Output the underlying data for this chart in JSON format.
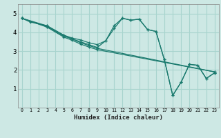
{
  "xlabel": "Humidex (Indice chaleur)",
  "background_color": "#cde8e4",
  "grid_color": "#a8d4ce",
  "line_color": "#1a7a6e",
  "xlim": [
    -0.5,
    23.5
  ],
  "ylim": [
    0,
    5.5
  ],
  "yticks": [
    1,
    2,
    3,
    4,
    5
  ],
  "xticks": [
    0,
    1,
    2,
    3,
    4,
    5,
    6,
    7,
    8,
    9,
    10,
    11,
    12,
    13,
    14,
    15,
    16,
    17,
    18,
    19,
    20,
    21,
    22,
    23
  ],
  "lines": [
    {
      "x": [
        0,
        1,
        3,
        5,
        6,
        7,
        8,
        9,
        10,
        11,
        12,
        13,
        14,
        15,
        16,
        17,
        18,
        19,
        20,
        21,
        22,
        23
      ],
      "y": [
        4.75,
        4.55,
        4.35,
        3.85,
        3.7,
        3.6,
        3.45,
        3.35,
        3.55,
        4.35,
        4.75,
        4.65,
        4.7,
        4.15,
        4.05,
        2.55,
        0.65,
        1.35,
        2.3,
        2.25,
        1.55,
        1.85
      ]
    },
    {
      "x": [
        0,
        3,
        5,
        6,
        7,
        8,
        9,
        10,
        11,
        12,
        13,
        14,
        15,
        16,
        17,
        18,
        19,
        20,
        21,
        22,
        23
      ],
      "y": [
        4.75,
        4.35,
        3.85,
        3.65,
        3.5,
        3.35,
        3.2,
        3.55,
        4.2,
        4.75,
        4.65,
        4.7,
        4.15,
        4.05,
        2.55,
        0.65,
        1.35,
        2.3,
        2.25,
        1.55,
        1.85
      ]
    },
    {
      "x": [
        0,
        3,
        5,
        6,
        7,
        8,
        9,
        23
      ],
      "y": [
        4.75,
        4.3,
        3.8,
        3.65,
        3.45,
        3.3,
        3.15,
        1.9
      ]
    },
    {
      "x": [
        0,
        3,
        5,
        6,
        7,
        8,
        9,
        23
      ],
      "y": [
        4.75,
        4.28,
        3.75,
        3.58,
        3.38,
        3.22,
        3.08,
        1.9
      ]
    }
  ]
}
